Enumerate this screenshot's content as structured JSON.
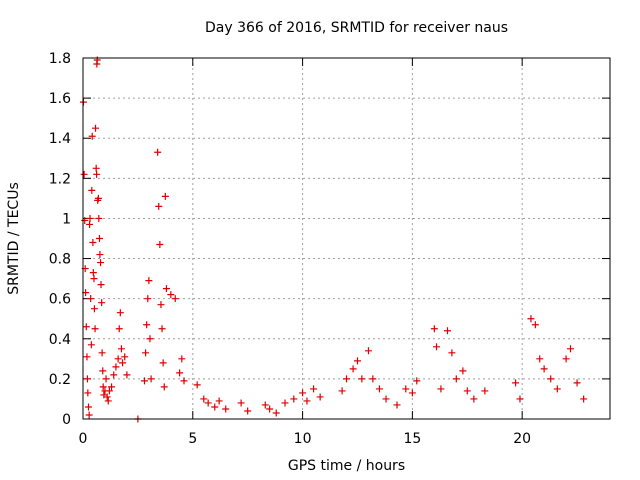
{
  "chart_data": {
    "type": "scatter",
    "title": "Day 366 of 2016, SRMTID for receiver naus",
    "xlabel": "GPS time / hours",
    "ylabel": "SRMTID / TECUs",
    "xlim": [
      0,
      24
    ],
    "ylim": [
      0,
      1.8
    ],
    "xticks": [
      0,
      5,
      10,
      15,
      20
    ],
    "yticks": [
      0,
      0.2,
      0.4,
      0.6,
      0.8,
      1,
      1.2,
      1.4,
      1.6,
      1.8
    ],
    "grid": true,
    "marker": "plus",
    "color": "#dd0000",
    "series": [
      {
        "values": [
          [
            0.02,
            1.58
          ],
          [
            0.05,
            1.22
          ],
          [
            0.08,
            0.99
          ],
          [
            0.1,
            0.75
          ],
          [
            0.12,
            0.63
          ],
          [
            0.15,
            0.46
          ],
          [
            0.18,
            0.31
          ],
          [
            0.2,
            0.2
          ],
          [
            0.22,
            0.13
          ],
          [
            0.25,
            0.06
          ],
          [
            0.28,
            0.02
          ],
          [
            0.3,
            0.97
          ],
          [
            0.32,
            1.0
          ],
          [
            0.35,
            0.6
          ],
          [
            0.38,
            0.37
          ],
          [
            0.4,
            1.14
          ],
          [
            0.42,
            1.41
          ],
          [
            0.45,
            0.88
          ],
          [
            0.47,
            0.73
          ],
          [
            0.5,
            0.7
          ],
          [
            0.52,
            0.55
          ],
          [
            0.55,
            0.45
          ],
          [
            0.57,
            1.45
          ],
          [
            0.6,
            1.25
          ],
          [
            0.62,
            1.22
          ],
          [
            0.63,
            1.77
          ],
          [
            0.65,
            1.79
          ],
          [
            0.67,
            1.09
          ],
          [
            0.7,
            1.1
          ],
          [
            0.72,
            1.0
          ],
          [
            0.75,
            0.9
          ],
          [
            0.77,
            0.82
          ],
          [
            0.8,
            0.78
          ],
          [
            0.82,
            0.67
          ],
          [
            0.85,
            0.58
          ],
          [
            0.87,
            0.33
          ],
          [
            0.9,
            0.24
          ],
          [
            0.92,
            0.16
          ],
          [
            0.95,
            0.12
          ],
          [
            1.0,
            0.14
          ],
          [
            1.05,
            0.2
          ],
          [
            1.1,
            0.11
          ],
          [
            1.15,
            0.09
          ],
          [
            1.2,
            0.14
          ],
          [
            1.3,
            0.16
          ],
          [
            1.4,
            0.22
          ],
          [
            1.5,
            0.26
          ],
          [
            1.6,
            0.3
          ],
          [
            1.65,
            0.45
          ],
          [
            1.7,
            0.53
          ],
          [
            1.75,
            0.35
          ],
          [
            1.8,
            0.28
          ],
          [
            1.9,
            0.31
          ],
          [
            2.0,
            0.22
          ],
          [
            2.5,
            0.0
          ],
          [
            2.8,
            0.19
          ],
          [
            2.85,
            0.33
          ],
          [
            2.9,
            0.47
          ],
          [
            2.95,
            0.6
          ],
          [
            3.0,
            0.69
          ],
          [
            3.05,
            0.4
          ],
          [
            3.1,
            0.2
          ],
          [
            3.4,
            1.33
          ],
          [
            3.45,
            1.06
          ],
          [
            3.5,
            0.87
          ],
          [
            3.55,
            0.57
          ],
          [
            3.6,
            0.45
          ],
          [
            3.65,
            0.28
          ],
          [
            3.7,
            0.16
          ],
          [
            3.75,
            1.11
          ],
          [
            3.8,
            0.65
          ],
          [
            4.0,
            0.62
          ],
          [
            4.2,
            0.6
          ],
          [
            4.4,
            0.23
          ],
          [
            4.5,
            0.3
          ],
          [
            4.6,
            0.19
          ],
          [
            5.2,
            0.17
          ],
          [
            5.5,
            0.1
          ],
          [
            5.7,
            0.08
          ],
          [
            6.0,
            0.06
          ],
          [
            6.2,
            0.09
          ],
          [
            6.5,
            0.05
          ],
          [
            7.2,
            0.08
          ],
          [
            7.5,
            0.04
          ],
          [
            8.3,
            0.07
          ],
          [
            8.5,
            0.05
          ],
          [
            8.8,
            0.03
          ],
          [
            9.2,
            0.08
          ],
          [
            9.6,
            0.1
          ],
          [
            10.0,
            0.13
          ],
          [
            10.2,
            0.09
          ],
          [
            10.5,
            0.15
          ],
          [
            10.8,
            0.11
          ],
          [
            11.8,
            0.14
          ],
          [
            12.0,
            0.2
          ],
          [
            12.3,
            0.25
          ],
          [
            12.5,
            0.29
          ],
          [
            12.7,
            0.2
          ],
          [
            13.0,
            0.34
          ],
          [
            13.2,
            0.2
          ],
          [
            13.5,
            0.15
          ],
          [
            13.8,
            0.1
          ],
          [
            14.3,
            0.07
          ],
          [
            14.7,
            0.15
          ],
          [
            15.0,
            0.13
          ],
          [
            15.2,
            0.19
          ],
          [
            16.0,
            0.45
          ],
          [
            16.1,
            0.36
          ],
          [
            16.3,
            0.15
          ],
          [
            16.6,
            0.44
          ],
          [
            16.8,
            0.33
          ],
          [
            17.0,
            0.2
          ],
          [
            17.3,
            0.24
          ],
          [
            17.5,
            0.14
          ],
          [
            17.8,
            0.1
          ],
          [
            18.3,
            0.14
          ],
          [
            19.7,
            0.18
          ],
          [
            19.9,
            0.1
          ],
          [
            20.4,
            0.5
          ],
          [
            20.6,
            0.47
          ],
          [
            20.8,
            0.3
          ],
          [
            21.0,
            0.25
          ],
          [
            21.3,
            0.2
          ],
          [
            21.6,
            0.15
          ],
          [
            22.0,
            0.3
          ],
          [
            22.2,
            0.35
          ],
          [
            22.5,
            0.18
          ],
          [
            22.8,
            0.1
          ]
        ]
      }
    ]
  }
}
